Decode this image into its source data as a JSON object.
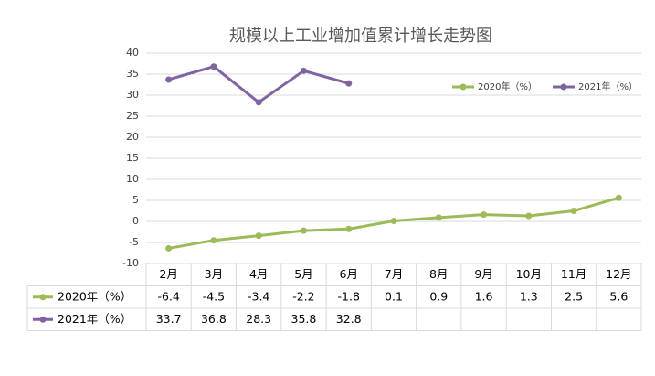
{
  "chart_data": {
    "type": "line",
    "title": "规模以上工业增加值累计增长走势图",
    "categories": [
      "2月",
      "3月",
      "4月",
      "5月",
      "6月",
      "7月",
      "8月",
      "9月",
      "10月",
      "11月",
      "12月"
    ],
    "series": [
      {
        "name": "2020年（%）",
        "color": "#9bbb59",
        "values": [
          -6.4,
          -4.5,
          -3.4,
          -2.2,
          -1.8,
          0.1,
          0.9,
          1.6,
          1.3,
          2.5,
          5.6
        ]
      },
      {
        "name": "2021年（%）",
        "color": "#8064a2",
        "values": [
          33.7,
          36.8,
          28.3,
          35.8,
          32.8,
          null,
          null,
          null,
          null,
          null,
          null
        ]
      }
    ],
    "ylim": [
      -10,
      40
    ],
    "yticks": [
      -10,
      -5,
      0,
      5,
      10,
      15,
      20,
      25,
      30,
      35,
      40
    ],
    "grid": true,
    "legend": "top-right"
  }
}
